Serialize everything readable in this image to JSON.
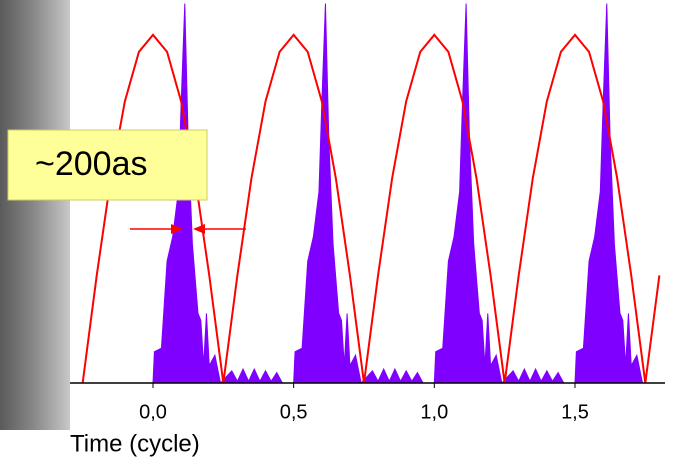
{
  "chart_data": {
    "type": "area-line",
    "annotation": "~200as",
    "xlabel": "Time (cycle)",
    "xlim": [
      -0.295,
      1.82
    ],
    "ylim": [
      0,
      1.1
    ],
    "xticks": [
      {
        "value": 0,
        "label": "0,0"
      },
      {
        "value": 0.5,
        "label": "0,5"
      },
      {
        "value": 1,
        "label": "1,0"
      },
      {
        "value": 1.5,
        "label": "1,5"
      }
    ],
    "series": [
      {
        "color": "#8000ff",
        "kind": "area",
        "x": [
          0,
          0.005,
          0.03,
          0.05,
          0.07,
          0.09,
          0.1,
          0.113,
          0.125,
          0.14,
          0.16,
          0.17,
          0.18,
          0.19,
          0.2,
          0.22,
          0.24,
          0.28,
          0.3,
          0.32,
          0.34,
          0.36,
          0.38,
          0.4,
          0.42,
          0.44,
          0.46,
          0.5,
          0.505,
          0.53,
          0.55,
          0.57,
          0.59,
          0.6,
          0.613,
          0.625,
          0.64,
          0.66,
          0.67,
          0.68,
          0.69,
          0.7,
          0.72,
          0.74,
          0.78,
          0.8,
          0.82,
          0.84,
          0.86,
          0.88,
          0.9,
          0.92,
          0.94,
          0.96,
          1,
          1.005,
          1.03,
          1.05,
          1.07,
          1.09,
          1.1,
          1.113,
          1.125,
          1.14,
          1.16,
          1.17,
          1.18,
          1.19,
          1.2,
          1.22,
          1.24,
          1.28,
          1.3,
          1.32,
          1.34,
          1.36,
          1.38,
          1.4,
          1.42,
          1.44,
          1.46,
          1.5,
          1.505,
          1.53,
          1.55,
          1.57,
          1.59,
          1.6,
          1.613,
          1.625,
          1.64,
          1.66,
          1.67,
          1.68,
          1.69,
          1.7,
          1.72,
          1.74
        ],
        "values": [
          0,
          0.09,
          0.1,
          0.35,
          0.42,
          0.55,
          0.8,
          1.09,
          0.7,
          0.4,
          0.2,
          0.18,
          0.05,
          0.2,
          0.05,
          0.08,
          0,
          0.035,
          0.005,
          0.04,
          0.005,
          0.04,
          0.005,
          0.035,
          0.005,
          0.03,
          0,
          0,
          0.09,
          0.1,
          0.35,
          0.42,
          0.55,
          0.8,
          1.09,
          0.7,
          0.4,
          0.2,
          0.18,
          0.05,
          0.2,
          0.05,
          0.08,
          0,
          0.035,
          0.005,
          0.04,
          0.005,
          0.04,
          0.005,
          0.035,
          0.005,
          0.03,
          0,
          0,
          0.09,
          0.1,
          0.35,
          0.42,
          0.55,
          0.8,
          1.09,
          0.7,
          0.4,
          0.2,
          0.18,
          0.05,
          0.2,
          0.05,
          0.08,
          0,
          0.035,
          0.005,
          0.04,
          0.005,
          0.04,
          0.005,
          0.035,
          0.005,
          0.03,
          0,
          0,
          0.09,
          0.1,
          0.35,
          0.42,
          0.55,
          0.8,
          1.09,
          0.7,
          0.4,
          0.2,
          0.18,
          0.05,
          0.2,
          0.05,
          0.08,
          0
        ]
      },
      {
        "color": "#ff0000",
        "kind": "line",
        "x": [
          -0.25,
          -0.2,
          -0.15,
          -0.1,
          -0.05,
          0,
          0.05,
          0.1,
          0.15,
          0.2,
          0.25,
          0.3,
          0.35,
          0.4,
          0.45,
          0.5,
          0.55,
          0.6,
          0.65,
          0.7,
          0.75,
          0.8,
          0.85,
          0.9,
          0.95,
          1,
          1.05,
          1.1,
          1.15,
          1.2,
          1.25,
          1.3,
          1.35,
          1.4,
          1.45,
          1.5,
          1.55,
          1.6,
          1.65,
          1.7,
          1.75,
          1.8
        ],
        "values": [
          0,
          0.309,
          0.588,
          0.809,
          0.951,
          1,
          0.951,
          0.809,
          0.588,
          0.309,
          0,
          0.309,
          0.588,
          0.809,
          0.951,
          1,
          0.951,
          0.809,
          0.588,
          0.309,
          0,
          0.309,
          0.588,
          0.809,
          0.951,
          1,
          0.951,
          0.809,
          0.588,
          0.309,
          0,
          0.309,
          0.588,
          0.809,
          0.951,
          1,
          0.951,
          0.809,
          0.588,
          0.309,
          0,
          0.309
        ]
      }
    ]
  }
}
